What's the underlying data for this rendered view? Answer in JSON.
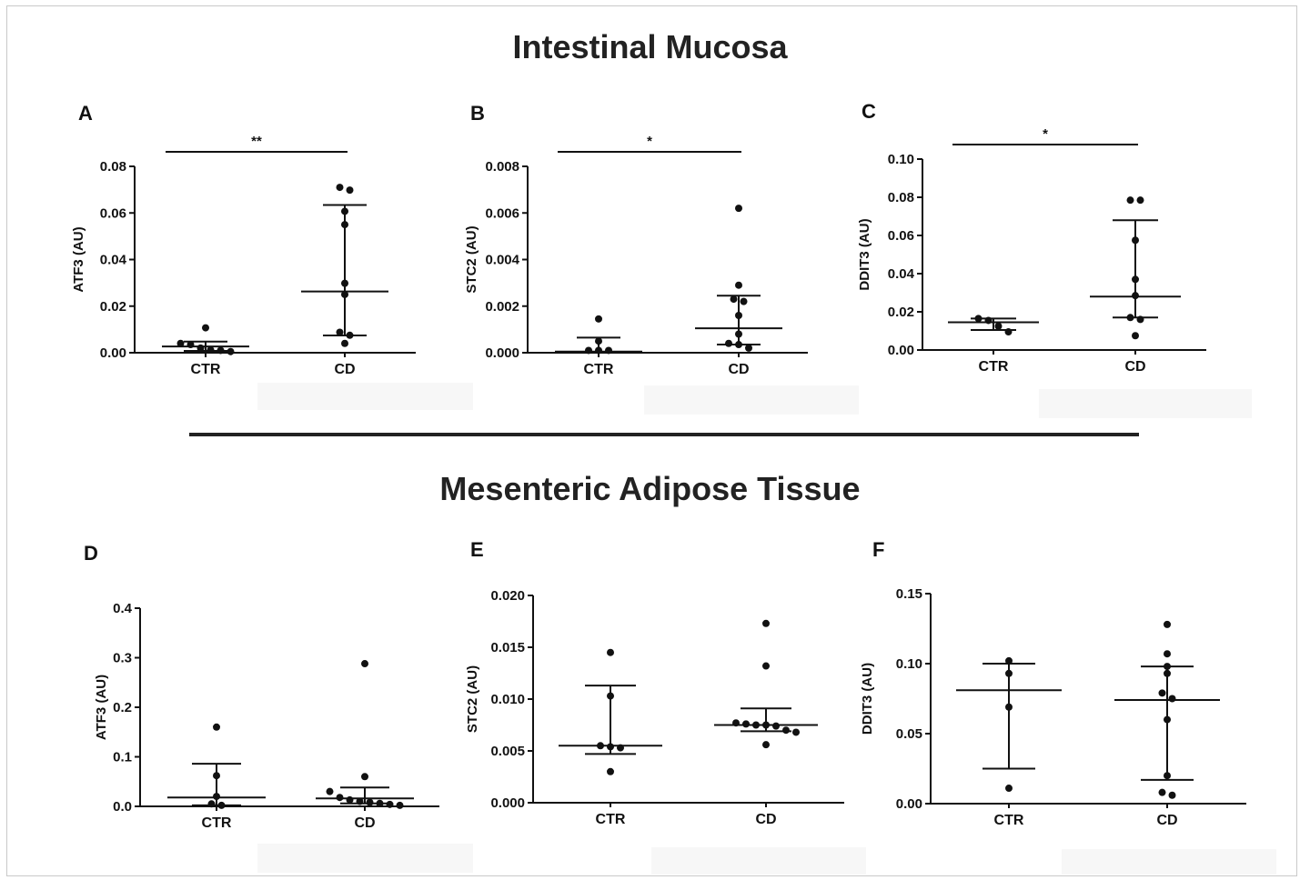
{
  "titles": {
    "top": "Intestinal Mucosa",
    "bottom": "Mesenteric Adipose Tissue"
  },
  "colors": {
    "ink": "#111111",
    "frame": "#c9c9c9"
  },
  "chart_data": [
    {
      "type": "scatter",
      "panel": "A",
      "ylabel": "ATF3 (AU)",
      "categories": [
        "CTR",
        "CD"
      ],
      "ylim": [
        0,
        0.08
      ],
      "yticks": [
        "0.00",
        "0.02",
        "0.04",
        "0.06",
        "0.08"
      ],
      "yticks_values": [
        0,
        0.02,
        0.04,
        0.06,
        0.08
      ],
      "points": [
        [
          0.0107,
          0.004,
          0.0035,
          0.002,
          0.0012,
          0.001,
          0.0005
        ],
        [
          0.071,
          0.0698,
          0.0607,
          0.055,
          0.0298,
          0.025,
          0.0088,
          0.0075,
          0.004
        ]
      ],
      "median": [
        0.0027,
        0.0263
      ],
      "iqr": [
        [
          0.0008,
          0.0048
        ],
        [
          0.0074,
          0.0634
        ]
      ],
      "significance": "**"
    },
    {
      "type": "scatter",
      "panel": "B",
      "ylabel": "STC2 (AU)",
      "categories": [
        "CTR",
        "CD"
      ],
      "ylim": [
        0,
        0.008
      ],
      "yticks": [
        "0.000",
        "0.002",
        "0.004",
        "0.006",
        "0.008"
      ],
      "yticks_values": [
        0,
        0.002,
        0.004,
        0.006,
        0.008
      ],
      "points": [
        [
          0.00145,
          0.0005,
          0.0001,
          0.0001,
          0.0001
        ],
        [
          0.0062,
          0.0029,
          0.0023,
          0.0022,
          0.0016,
          0.0008,
          0.0004,
          0.00035,
          0.0002
        ]
      ],
      "median": [
        5e-05,
        0.00105
      ],
      "iqr": [
        [
          0.0,
          0.00065
        ],
        [
          0.00035,
          0.00245
        ]
      ],
      "significance": "*"
    },
    {
      "type": "scatter",
      "panel": "C",
      "ylabel": "DDIT3 (AU)",
      "categories": [
        "CTR",
        "CD"
      ],
      "ylim": [
        0,
        0.1
      ],
      "yticks": [
        "0.00",
        "0.02",
        "0.04",
        "0.06",
        "0.08",
        "0.10"
      ],
      "yticks_values": [
        0,
        0.02,
        0.04,
        0.06,
        0.08,
        0.1
      ],
      "points": [
        [
          0.0165,
          0.0155,
          0.0125,
          0.0095
        ],
        [
          0.0785,
          0.0785,
          0.0575,
          0.037,
          0.0285,
          0.017,
          0.016,
          0.0075
        ]
      ],
      "median": [
        0.0145,
        0.028
      ],
      "iqr": [
        [
          0.0105,
          0.0165
        ],
        [
          0.017,
          0.068
        ]
      ],
      "significance": "*"
    },
    {
      "type": "scatter",
      "panel": "D",
      "ylabel": "ATF3 (AU)",
      "categories": [
        "CTR",
        "CD"
      ],
      "ylim": [
        0,
        0.4
      ],
      "yticks": [
        "0.0",
        "0.1",
        "0.2",
        "0.3",
        "0.4"
      ],
      "yticks_values": [
        0,
        0.1,
        0.2,
        0.3,
        0.4
      ],
      "points": [
        [
          0.16,
          0.062,
          0.02,
          0.005,
          0.002
        ],
        [
          0.288,
          0.06,
          0.03,
          0.018,
          0.013,
          0.01,
          0.008,
          0.006,
          0.004,
          0.002
        ]
      ],
      "median": [
        0.018,
        0.016
      ],
      "iqr": [
        [
          0.002,
          0.086
        ],
        [
          0.006,
          0.038
        ]
      ],
      "significance": ""
    },
    {
      "type": "scatter",
      "panel": "E",
      "ylabel": "STC2 (AU)",
      "categories": [
        "CTR",
        "CD"
      ],
      "ylim": [
        0,
        0.02
      ],
      "yticks": [
        "0.000",
        "0.005",
        "0.010",
        "0.015",
        "0.020"
      ],
      "yticks_values": [
        0,
        0.005,
        0.01,
        0.015,
        0.02
      ],
      "points": [
        [
          0.0145,
          0.0103,
          0.0055,
          0.0054,
          0.0053,
          0.003
        ],
        [
          0.0173,
          0.0132,
          0.0077,
          0.0076,
          0.0075,
          0.0075,
          0.0074,
          0.007,
          0.0068,
          0.0056
        ]
      ],
      "median": [
        0.0055,
        0.0075
      ],
      "iqr": [
        [
          0.0047,
          0.0113
        ],
        [
          0.0069,
          0.0091
        ]
      ],
      "significance": ""
    },
    {
      "type": "scatter",
      "panel": "F",
      "ylabel": "DDIT3 (AU)",
      "categories": [
        "CTR",
        "CD"
      ],
      "ylim": [
        0,
        0.15
      ],
      "yticks": [
        "0.00",
        "0.05",
        "0.10",
        "0.15"
      ],
      "yticks_values": [
        0,
        0.05,
        0.1,
        0.15
      ],
      "points": [
        [
          0.102,
          0.093,
          0.069,
          0.011
        ],
        [
          0.128,
          0.107,
          0.098,
          0.093,
          0.079,
          0.075,
          0.06,
          0.02,
          0.008,
          0.006
        ]
      ],
      "median": [
        0.081,
        0.074
      ],
      "iqr": [
        [
          0.025,
          0.1
        ],
        [
          0.017,
          0.098
        ]
      ],
      "significance": ""
    }
  ]
}
